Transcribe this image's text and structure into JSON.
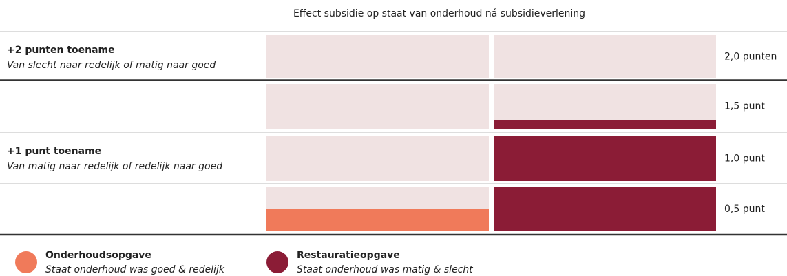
{
  "chart_data": {
    "type": "bar",
    "title": "Effect subsidie op staat van onderhoud ná subsidieverlening",
    "categories": [
      null
    ],
    "series": [
      {
        "name": "Onderhoudsopgave",
        "description": "Staat onderhoud was goed & redelijk",
        "color": "#f07a5a",
        "values": [
          0.25
        ]
      },
      {
        "name": "Restauratieopgave",
        "description": "Staat onderhoud was matig & slecht",
        "color": "#8b1c36",
        "values": [
          1.1
        ]
      }
    ],
    "ylim": [
      0,
      2
    ],
    "yticks": [
      {
        "value": 0.5,
        "label": "0,5 punt"
      },
      {
        "value": 1,
        "label": "1,0 punt"
      },
      {
        "value": 1.5,
        "label": "1,5 punt"
      },
      {
        "value": 2,
        "label": "2,0 punten"
      }
    ],
    "annotations": [
      {
        "title": "+2 punten toename",
        "subtitle": "Van slecht naar redelijk of matig naar goed",
        "y": 2
      },
      {
        "title": "+1 punt toename",
        "subtitle": "Van matig naar redelijk of redelijk naar goed",
        "y": 1
      }
    ]
  }
}
